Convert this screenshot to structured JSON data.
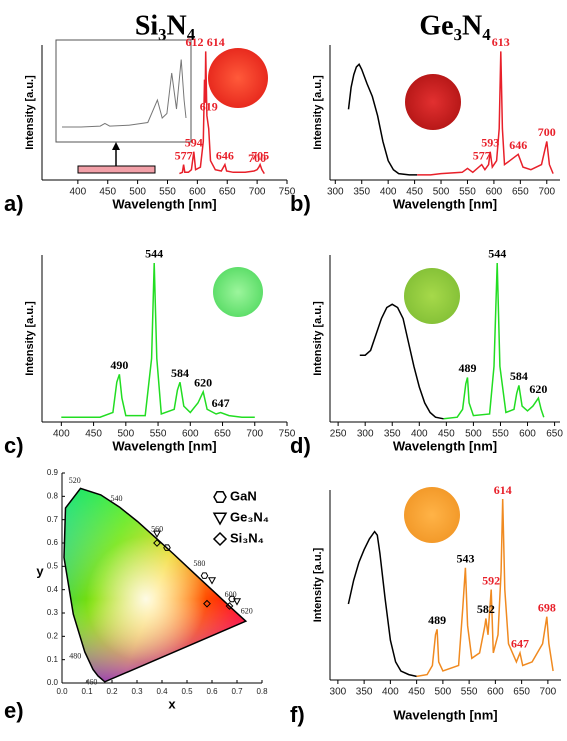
{
  "headers": [
    "Si₃N₄",
    "Ge₃N₄"
  ],
  "chart_data": [
    {
      "type": "line",
      "panel": "a)",
      "xlabel": "Wavelength [nm]",
      "ylabel": "Intensity [a.u.]",
      "xlim": [
        340,
        750
      ],
      "ylim": [
        0,
        105
      ],
      "xticks": [
        400,
        450,
        500,
        550,
        600,
        650,
        700,
        750
      ],
      "series": [
        {
          "color": "#e8202a",
          "x": [
            570,
            575,
            577,
            579,
            585,
            590,
            594,
            597,
            605,
            610,
            612,
            613,
            614,
            616,
            619,
            622,
            630,
            640,
            646,
            649,
            660,
            680,
            695,
            700,
            703,
            705,
            708,
            712
          ],
          "values": [
            5,
            6,
            12,
            6,
            6,
            8,
            22,
            8,
            10,
            30,
            78,
            60,
            100,
            50,
            40,
            15,
            8,
            7,
            12,
            7,
            6,
            6,
            7,
            8,
            10,
            12,
            8,
            5
          ]
        }
      ],
      "inset": {
        "color": "#777",
        "xlim": [
          420,
          550
        ],
        "ylim": [
          0,
          100
        ],
        "x": [
          420,
          440,
          460,
          465,
          470,
          490,
          510,
          520,
          525,
          530,
          535,
          540,
          545,
          548,
          550
        ],
        "values": [
          10,
          10,
          11,
          14,
          11,
          12,
          15,
          40,
          20,
          25,
          70,
          30,
          85,
          40,
          20
        ]
      },
      "peaks": [
        577,
        594,
        612,
        614,
        619,
        646,
        700,
        705
      ],
      "peak_colors": [
        "#e8202a",
        "#e8202a",
        "#e8202a",
        "#e8202a",
        "#e8202a",
        "#e8202a",
        "#e8202a",
        "#e8202a"
      ]
    },
    {
      "type": "line",
      "panel": "b)",
      "xlabel": "Wavelength [nm]",
      "ylabel": "Intensity [a.u.]",
      "xlim": [
        290,
        725
      ],
      "ylim": [
        0,
        105
      ],
      "xticks": [
        300,
        350,
        400,
        450,
        500,
        550,
        600,
        650,
        700
      ],
      "series": [
        {
          "color": "#000000",
          "x": [
            325,
            330,
            335,
            340,
            345,
            350,
            360,
            370,
            380,
            390,
            400,
            410,
            420,
            440,
            455
          ],
          "values": [
            55,
            72,
            82,
            88,
            90,
            86,
            75,
            65,
            50,
            30,
            15,
            8,
            5,
            4,
            4
          ]
        },
        {
          "color": "#e8202a",
          "x": [
            455,
            480,
            500,
            540,
            550,
            560,
            577,
            583,
            590,
            593,
            597,
            605,
            610,
            613,
            616,
            620,
            630,
            646,
            655,
            670,
            690,
            700,
            705,
            712
          ],
          "values": [
            4,
            4,
            5,
            6,
            9,
            6,
            12,
            8,
            12,
            22,
            10,
            15,
            40,
            100,
            40,
            12,
            15,
            20,
            10,
            8,
            12,
            30,
            12,
            5
          ]
        }
      ],
      "peaks": [
        577,
        593,
        613,
        646,
        700
      ],
      "peak_colors": [
        "#e8202a",
        "#e8202a",
        "#e8202a",
        "#e8202a",
        "#e8202a"
      ]
    },
    {
      "type": "line",
      "panel": "c)",
      "xlabel": "Wavelength [nm]",
      "ylabel": "Intensity [a.u.]",
      "xlim": [
        370,
        750
      ],
      "ylim": [
        0,
        105
      ],
      "xticks": [
        400,
        450,
        500,
        550,
        600,
        650,
        700,
        750
      ],
      "series": [
        {
          "color": "#22dd22",
          "x": [
            400,
            460,
            480,
            486,
            490,
            494,
            500,
            530,
            540,
            544,
            548,
            555,
            575,
            580,
            584,
            590,
            600,
            612,
            620,
            626,
            640,
            647,
            660,
            680,
            700
          ],
          "values": [
            3,
            3,
            6,
            25,
            30,
            15,
            4,
            4,
            40,
            100,
            40,
            5,
            8,
            20,
            25,
            10,
            6,
            12,
            19,
            8,
            5,
            6,
            4,
            3,
            3
          ]
        }
      ],
      "peaks": [
        490,
        544,
        584,
        620,
        647
      ],
      "peak_colors": [
        "#000000",
        "#000000",
        "#000000",
        "#000000",
        "#000000"
      ]
    },
    {
      "type": "line",
      "panel": "d)",
      "xlabel": "Wavelength [nm]",
      "ylabel": "Intensity [a.u.]",
      "xlim": [
        235,
        660
      ],
      "ylim": [
        0,
        105
      ],
      "xticks": [
        250,
        300,
        350,
        400,
        450,
        500,
        550,
        600,
        650
      ],
      "series": [
        {
          "color": "#000000",
          "x": [
            290,
            300,
            310,
            320,
            330,
            340,
            350,
            360,
            370,
            380,
            390,
            400,
            410,
            420,
            430,
            445
          ],
          "values": [
            42,
            42,
            45,
            55,
            65,
            72,
            74,
            72,
            65,
            50,
            35,
            22,
            12,
            6,
            3,
            2
          ]
        },
        {
          "color": "#22dd22",
          "x": [
            445,
            470,
            480,
            486,
            489,
            492,
            500,
            530,
            538,
            544,
            549,
            560,
            575,
            580,
            584,
            590,
            600,
            610,
            620,
            625,
            630
          ],
          "values": [
            2,
            3,
            8,
            24,
            28,
            12,
            4,
            5,
            35,
            100,
            35,
            6,
            8,
            18,
            23,
            10,
            7,
            10,
            15,
            8,
            3
          ]
        }
      ],
      "peaks": [
        489,
        544,
        584,
        620
      ],
      "peak_colors": [
        "#000000",
        "#000000",
        "#000000",
        "#000000"
      ]
    },
    {
      "type": "scatter",
      "panel": "e)",
      "xlabel": "x",
      "ylabel": "y",
      "xlim": [
        0,
        0.8
      ],
      "ylim": [
        0,
        0.9
      ],
      "xticks": [
        {
          "value": 0,
          "label": "0.0"
        },
        {
          "value": 0.1,
          "label": "0.1"
        },
        {
          "value": 0.2,
          "label": "0.2"
        },
        {
          "value": 0.3,
          "label": "0.3"
        },
        {
          "value": 0.4,
          "label": "0.4"
        },
        {
          "value": 0.5,
          "label": "0.5"
        },
        {
          "value": 0.6,
          "label": "0.6"
        },
        {
          "value": 0.7,
          "label": "0.7"
        },
        {
          "value": 0.8,
          "label": "0.8"
        }
      ],
      "yticks": [
        {
          "value": 0,
          "label": "0.0"
        },
        {
          "value": 0.1,
          "label": "0.1"
        },
        {
          "value": 0.2,
          "label": "0.2"
        },
        {
          "value": 0.3,
          "label": "0.3"
        },
        {
          "value": 0.4,
          "label": "0.4"
        },
        {
          "value": 0.5,
          "label": "0.5"
        },
        {
          "value": 0.6,
          "label": "0.6"
        },
        {
          "value": 0.7,
          "label": "0.7"
        },
        {
          "value": 0.8,
          "label": "0.8"
        },
        {
          "value": 0.9,
          "label": "0.9"
        }
      ],
      "locus": {
        "wavelengths": [
          null,
          460,
          null,
          480,
          null,
          null,
          null,
          520,
          null,
          540,
          null,
          560,
          null,
          580,
          null,
          600,
          620,
          null
        ],
        "x": [
          0.171,
          0.144,
          0.124,
          0.091,
          0.045,
          0.008,
          0.014,
          0.074,
          0.155,
          0.23,
          0.302,
          0.373,
          0.444,
          0.512,
          0.575,
          0.627,
          0.691,
          0.735
        ],
        "y": [
          0.005,
          0.03,
          0.058,
          0.133,
          0.295,
          0.538,
          0.75,
          0.834,
          0.806,
          0.754,
          0.692,
          0.624,
          0.555,
          0.487,
          0.424,
          0.372,
          0.308,
          0.265
        ]
      },
      "series": [
        {
          "name": "GaN",
          "marker": "hexagon",
          "x": [
            0.42,
            0.57,
            0.68
          ],
          "values": [
            0.58,
            0.46,
            0.36
          ]
        },
        {
          "name": "Ge₃N₄",
          "marker": "triangle-down",
          "x": [
            0.38,
            0.6,
            0.7
          ],
          "values": [
            0.64,
            0.44,
            0.35
          ]
        },
        {
          "name": "Si₃N₄",
          "marker": "diamond",
          "x": [
            0.38,
            0.58,
            0.67
          ],
          "values": [
            0.6,
            0.34,
            0.33
          ]
        }
      ]
    },
    {
      "type": "line",
      "panel": "f)",
      "xlabel": "Wavelength [nm]",
      "ylabel": "Intensity [a.u.]",
      "xlim": [
        285,
        725
      ],
      "ylim": [
        0,
        105
      ],
      "xticks": [
        300,
        350,
        400,
        450,
        500,
        550,
        600,
        650,
        700
      ],
      "series": [
        {
          "color": "#000000",
          "x": [
            320,
            330,
            340,
            350,
            360,
            370,
            375,
            380,
            390,
            400,
            410,
            420,
            435,
            450
          ],
          "values": [
            42,
            55,
            65,
            72,
            78,
            82,
            80,
            70,
            45,
            22,
            10,
            5,
            3,
            2
          ]
        },
        {
          "color": "#f08a20",
          "x": [
            450,
            470,
            480,
            486,
            489,
            492,
            500,
            530,
            538,
            543,
            547,
            555,
            570,
            580,
            582,
            586,
            592,
            596,
            605,
            611,
            614,
            618,
            625,
            640,
            647,
            652,
            670,
            690,
            698,
            702,
            710
          ],
          "values": [
            2,
            3,
            8,
            25,
            28,
            10,
            5,
            8,
            40,
            62,
            30,
            12,
            15,
            30,
            34,
            25,
            50,
            15,
            25,
            60,
            100,
            50,
            20,
            10,
            15,
            8,
            10,
            20,
            35,
            20,
            5
          ]
        }
      ],
      "peaks": [
        489,
        543,
        582,
        592,
        614,
        647,
        698
      ],
      "peak_colors": [
        "#000000",
        "#000000",
        "#000000",
        "#e8202a",
        "#e8202a",
        "#e8202a",
        "#e8202a"
      ]
    }
  ]
}
